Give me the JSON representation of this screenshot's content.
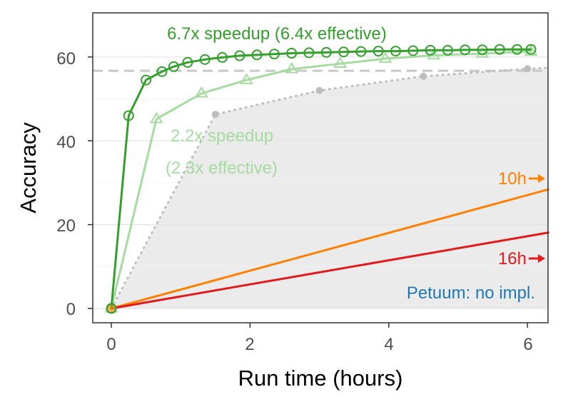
{
  "chart_data": {
    "type": "line",
    "xlabel": "Run time (hours)",
    "ylabel": "Accuracy",
    "xlim": [
      -0.3,
      6.3
    ],
    "ylim": [
      -3,
      70
    ],
    "x_ticks": [
      "0",
      "2",
      "4",
      "6"
    ],
    "y_ticks": [
      "0",
      "20",
      "40",
      "60"
    ],
    "grid": true,
    "reference_line": 56.7,
    "series": [
      {
        "key": "green_dark",
        "color": "#33a02c",
        "marker": "circle",
        "points": [
          [
            0,
            0
          ],
          [
            0.25,
            46
          ],
          [
            0.5,
            54.5
          ],
          [
            0.73,
            56.5
          ],
          [
            0.9,
            57.7
          ],
          [
            1.1,
            58.7
          ],
          [
            1.35,
            59.4
          ],
          [
            1.6,
            59.9
          ],
          [
            1.85,
            60.3
          ],
          [
            2.1,
            60.5
          ],
          [
            2.35,
            60.7
          ],
          [
            2.6,
            60.9
          ],
          [
            2.85,
            61.0
          ],
          [
            3.1,
            61.1
          ],
          [
            3.35,
            61.2
          ],
          [
            3.6,
            61.3
          ],
          [
            3.85,
            61.4
          ],
          [
            4.1,
            61.4
          ],
          [
            4.35,
            61.5
          ],
          [
            4.6,
            61.6
          ],
          [
            4.85,
            61.6
          ],
          [
            5.1,
            61.7
          ],
          [
            5.35,
            61.7
          ],
          [
            5.6,
            61.8
          ],
          [
            5.85,
            61.8
          ],
          [
            6.05,
            61.8
          ]
        ]
      },
      {
        "key": "green_light",
        "color": "#a6dba0",
        "marker": "triangle",
        "points": [
          [
            0,
            0
          ],
          [
            0.65,
            45.2
          ],
          [
            1.3,
            51.3
          ],
          [
            1.95,
            54.5
          ],
          [
            2.6,
            57.1
          ],
          [
            3.3,
            58.4
          ],
          [
            3.95,
            59.6
          ],
          [
            4.65,
            60.4
          ],
          [
            5.35,
            60.8
          ],
          [
            6.05,
            61.3
          ]
        ]
      },
      {
        "key": "grey_dotted",
        "color": "#bdbdbd",
        "marker": "dot",
        "dotted": true,
        "points": [
          [
            0,
            0
          ],
          [
            1.5,
            46.3
          ],
          [
            3.0,
            52.0
          ],
          [
            4.5,
            55.4
          ],
          [
            6.0,
            57.2
          ],
          [
            6.3,
            57.4
          ]
        ]
      },
      {
        "key": "orange",
        "color": "#ff7f00",
        "marker": "none",
        "points": [
          [
            0,
            0
          ],
          [
            6.3,
            28.4
          ]
        ]
      },
      {
        "key": "red",
        "color": "#e31a1c",
        "marker": "none",
        "points": [
          [
            0,
            0
          ],
          [
            6.3,
            18.1
          ]
        ]
      }
    ],
    "annotations": [
      {
        "text": "6.7x speedup (6.4x effective)",
        "color": "#33a02c"
      },
      {
        "text": "2.2x speedup",
        "color": "#a6dba0"
      },
      {
        "text": "(2.3x effective)",
        "color": "#a6dba0"
      },
      {
        "text": "10h",
        "color": "#ff7f00"
      },
      {
        "text": "16h",
        "color": "#e31a1c"
      },
      {
        "text": "Petuum: no impl.",
        "color": "#1f78b4"
      }
    ]
  }
}
